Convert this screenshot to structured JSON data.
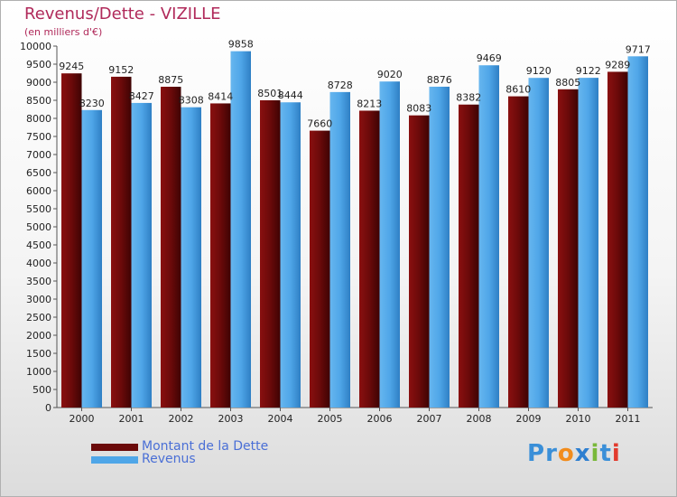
{
  "title": "Revenus/Dette - VIZILLE",
  "subtitle": "(en milliers d'€)",
  "logo": "Proxiti",
  "colors": {
    "debt": "#6b0a0a",
    "revenue": "#4fa6e8",
    "text_accent": "#b0295a",
    "legend_text": "#4a6fd6"
  },
  "chart_data": {
    "type": "bar",
    "title": "Revenus/Dette - VIZILLE",
    "subtitle": "(en milliers d'€)",
    "xlabel": "",
    "ylabel": "",
    "ylim": [
      0,
      10000
    ],
    "ytick_step": 500,
    "grid": false,
    "legend_position": "bottom-left",
    "categories": [
      "2000",
      "2001",
      "2002",
      "2003",
      "2004",
      "2005",
      "2006",
      "2007",
      "2008",
      "2009",
      "2010",
      "2011"
    ],
    "series": [
      {
        "name": "Montant de la Dette",
        "color": "#6b0a0a",
        "values": [
          9245,
          9152,
          8875,
          8414,
          8501,
          7660,
          8213,
          8083,
          8382,
          8610,
          8805,
          9289
        ]
      },
      {
        "name": "Revenus",
        "color": "#4fa6e8",
        "values": [
          8230,
          8427,
          8308,
          9858,
          8444,
          8728,
          9020,
          8876,
          9469,
          9120,
          9122,
          9717
        ]
      }
    ]
  }
}
